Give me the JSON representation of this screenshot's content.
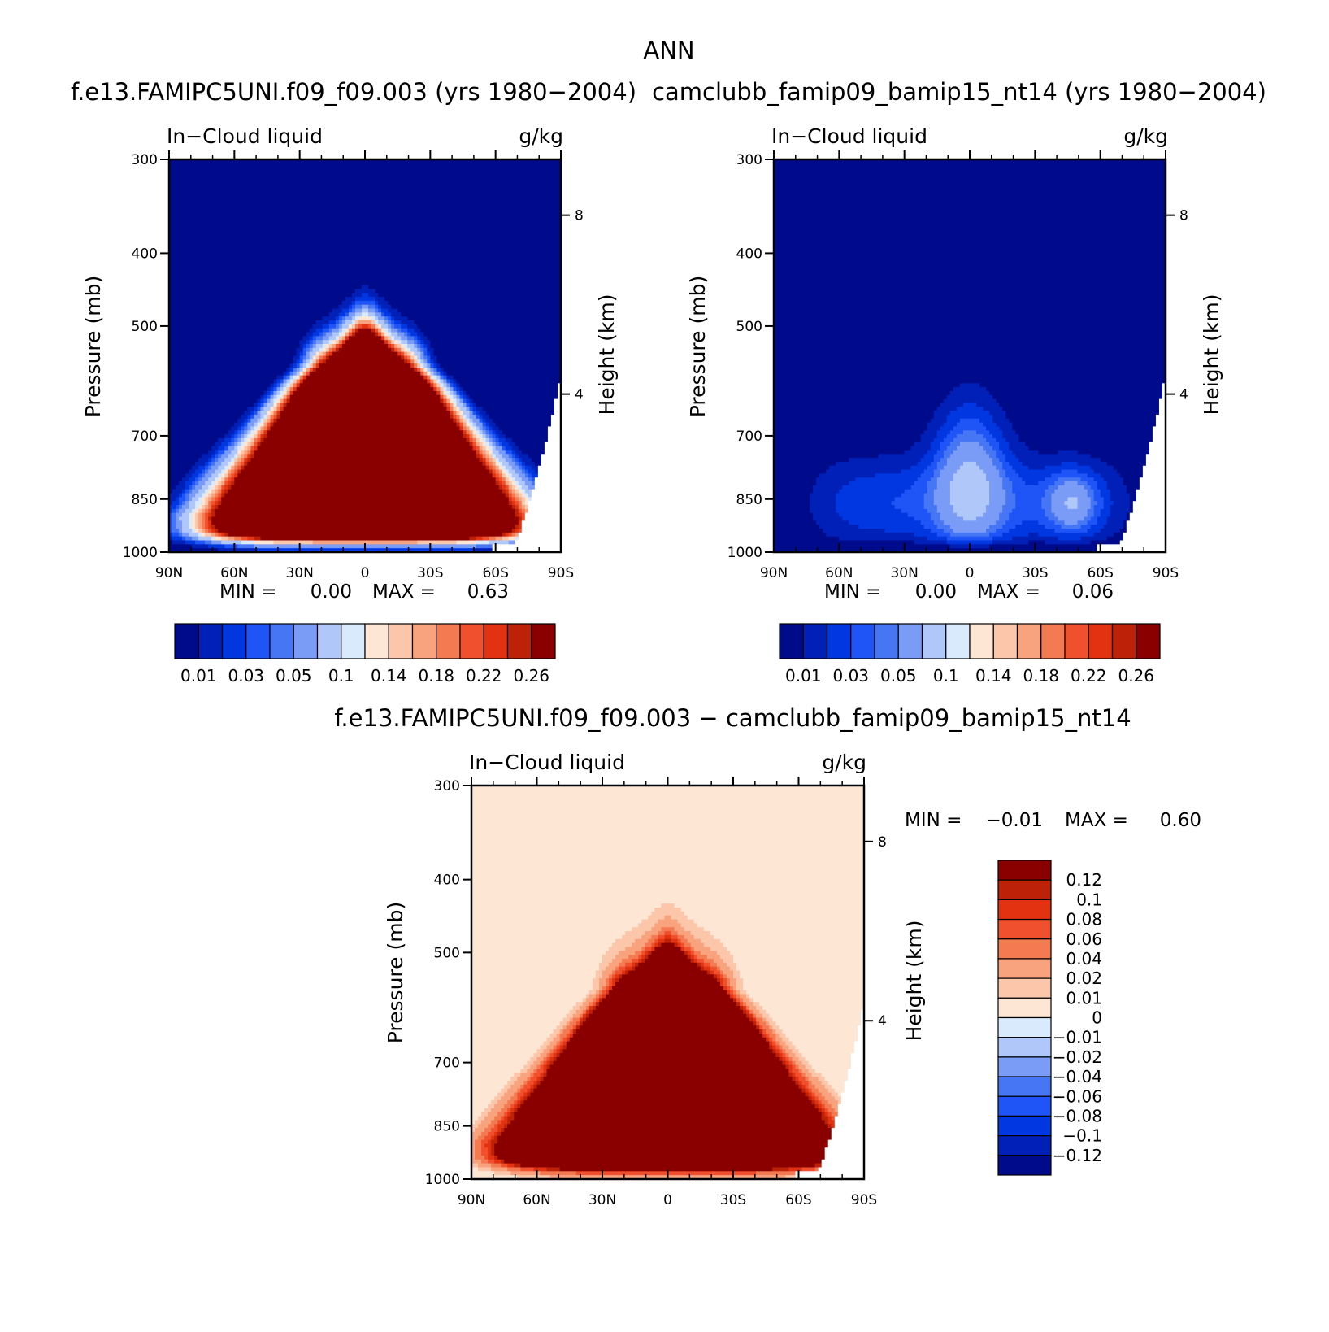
{
  "figure": {
    "title": "ANN"
  },
  "colors": {
    "absolute_levels": [
      "#000b8c",
      "#0020b8",
      "#0037e0",
      "#1f54f7",
      "#4776f5",
      "#7a9cf7",
      "#b0c7fa",
      "#d9eafd",
      "#fde6d4",
      "#fbc6aa",
      "#f8a27e",
      "#f47a52",
      "#f0502e",
      "#e23211",
      "#bd2208",
      "#8a0000"
    ],
    "difference_levels": [
      "#8a0000",
      "#bd2208",
      "#e23211",
      "#f0502e",
      "#f47a52",
      "#f8a27e",
      "#fbc6aa",
      "#fde6d4",
      "#d9eafd",
      "#b0c7fa",
      "#7a9cf7",
      "#4776f5",
      "#1f54f7",
      "#0037e0",
      "#0020b8",
      "#000b8c"
    ]
  },
  "chart_data": [
    {
      "type": "heatmap",
      "title": "f.e13.FAMIPC5UNI.f09_f09.003 (yrs 1980−2004)",
      "subtitle_left": "In−Cloud liquid",
      "subtitle_right": "g/kg",
      "xlabel": "",
      "ylabel": "Pressure (mb)",
      "ylabel_right": "Height (km)",
      "x_ticks": [
        "90N",
        "60N",
        "30N",
        "0",
        "30S",
        "60S",
        "90S"
      ],
      "x_values": [
        90,
        60,
        30,
        0,
        -30,
        -60,
        -90
      ],
      "xlim": [
        90,
        -90
      ],
      "y_ticks": [
        300,
        400,
        500,
        700,
        850,
        1000
      ],
      "ylim": [
        300,
        1000
      ],
      "y_scale": "log",
      "y_right_ticks": [
        8,
        4
      ],
      "y_right_ticks_pressure": [
        356,
        616
      ],
      "min_label": "MIN =",
      "min_value": "0.00",
      "max_label": "MAX =",
      "max_value": "0.63",
      "colorbar_labels": [
        "0.01",
        "0.03",
        "0.05",
        "0.1",
        "0.14",
        "0.18",
        "0.22",
        "0.26"
      ],
      "peak_value": 0.63
    },
    {
      "type": "heatmap",
      "title": "camclubb_famip09_bamip15_nt14 (yrs 1980−2004)",
      "subtitle_left": "In−Cloud liquid",
      "subtitle_right": "g/kg",
      "xlabel": "",
      "ylabel": "Pressure (mb)",
      "ylabel_right": "Height (km)",
      "x_ticks": [
        "90N",
        "60N",
        "30N",
        "0",
        "30S",
        "60S",
        "90S"
      ],
      "x_values": [
        90,
        60,
        30,
        0,
        -30,
        -60,
        -90
      ],
      "xlim": [
        90,
        -90
      ],
      "y_ticks": [
        300,
        400,
        500,
        700,
        850,
        1000
      ],
      "ylim": [
        300,
        1000
      ],
      "y_scale": "log",
      "y_right_ticks": [
        8,
        4
      ],
      "y_right_ticks_pressure": [
        356,
        616
      ],
      "min_label": "MIN =",
      "min_value": "0.00",
      "max_label": "MAX =",
      "max_value": "0.06",
      "colorbar_labels": [
        "0.01",
        "0.03",
        "0.05",
        "0.1",
        "0.14",
        "0.18",
        "0.22",
        "0.26"
      ],
      "peak_value": 0.06
    },
    {
      "type": "heatmap",
      "title": "f.e13.FAMIPC5UNI.f09_f09.003 − camclubb_famip09_bamip15_nt14",
      "subtitle_left": "In−Cloud liquid",
      "subtitle_right": "g/kg",
      "xlabel": "",
      "ylabel": "Pressure (mb)",
      "ylabel_right": "Height (km)",
      "x_ticks": [
        "90N",
        "60N",
        "30N",
        "0",
        "30S",
        "60S",
        "90S"
      ],
      "x_values": [
        90,
        60,
        30,
        0,
        -30,
        -60,
        -90
      ],
      "xlim": [
        90,
        -90
      ],
      "y_ticks": [
        300,
        400,
        500,
        700,
        850,
        1000
      ],
      "ylim": [
        300,
        1000
      ],
      "y_scale": "log",
      "y_right_ticks": [
        8,
        4
      ],
      "y_right_ticks_pressure": [
        356,
        616
      ],
      "min_label": "MIN =",
      "min_value": "−0.01",
      "max_label": "MAX =",
      "max_value": "0.60",
      "colorbar_labels": [
        "0.12",
        "0.1",
        "0.08",
        "0.06",
        "0.04",
        "0.02",
        "0.01",
        "0",
        "−0.01",
        "−0.02",
        "−0.04",
        "−0.06",
        "−0.08",
        "−0.1",
        "−0.12"
      ],
      "peak_value": 0.6
    }
  ]
}
